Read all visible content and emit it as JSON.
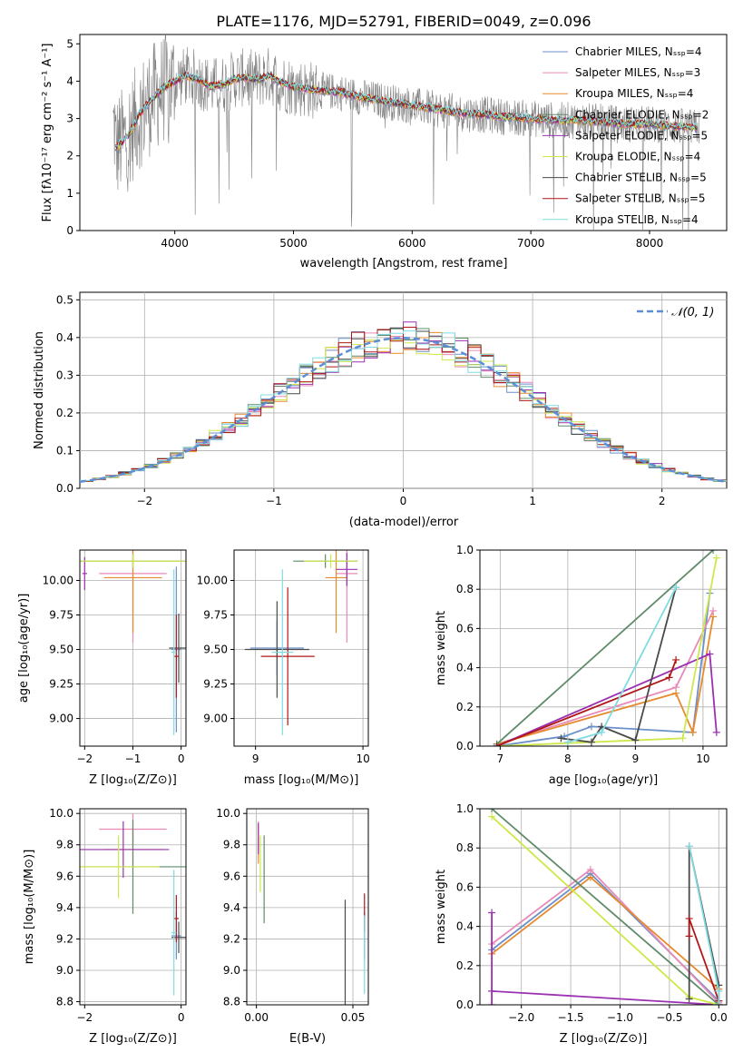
{
  "colors": {
    "chabrier_miles": "#6b8fc9",
    "salpeter_miles": "#e88ab8",
    "kroupa_miles": "#e68a2e",
    "chabrier_elodie": "#5e8c6a",
    "salpeter_elodie": "#9b30b0",
    "kroupa_elodie": "#cde84a",
    "chabrier_stelib": "#4a4a4a",
    "salpeter_stelib": "#b01818",
    "kroupa_stelib": "#7fdbe0",
    "data_gray": "#808080",
    "normal": "#5b8ed6"
  },
  "chart_data": [
    {
      "id": "spectrum",
      "type": "line",
      "title": "PLATE=1176, MJD=52791, FIBERID=0049, z=0.096",
      "xlabel": "wavelength [Angstrom, rest frame]",
      "ylabel": "Flux [fλ10⁻¹⁷ erg cm⁻² s⁻¹ A⁻¹]",
      "xlim": [
        3200,
        8650
      ],
      "ylim": [
        0,
        5.25
      ],
      "xticks": [
        "4000",
        "5000",
        "6000",
        "7000",
        "8000"
      ],
      "yticks": [
        "0",
        "1",
        "2",
        "3",
        "4",
        "5"
      ],
      "legend_position": "top-right",
      "legend": [
        {
          "label": "Chabrier MILES, Nₛₛₚ=4",
          "key": "chabrier_miles"
        },
        {
          "label": "Salpeter MILES, Nₛₛₚ=3",
          "key": "salpeter_miles"
        },
        {
          "label": "Kroupa MILES, Nₛₛₚ=4",
          "key": "kroupa_miles"
        },
        {
          "label": "Chabrier ELODIE, Nₛₛₚ=2",
          "key": "chabrier_elodie"
        },
        {
          "label": "Salpeter ELODIE, Nₛₛₚ=5",
          "key": "salpeter_elodie"
        },
        {
          "label": "Kroupa ELODIE, Nₛₛₚ=4",
          "key": "kroupa_elodie"
        },
        {
          "label": "Chabrier STELIB, Nₛₛₚ=5",
          "key": "chabrier_stelib"
        },
        {
          "label": "Salpeter STELIB, Nₛₛₚ=5",
          "key": "salpeter_stelib"
        },
        {
          "label": "Kroupa STELIB, Nₛₛₚ=4",
          "key": "kroupa_stelib"
        }
      ],
      "continuum": [
        [
          3500,
          2.2
        ],
        [
          3600,
          2.5
        ],
        [
          3700,
          3.1
        ],
        [
          3800,
          3.5
        ],
        [
          3900,
          3.8
        ],
        [
          4000,
          4.0
        ],
        [
          4100,
          4.15
        ],
        [
          4200,
          4.05
        ],
        [
          4300,
          3.85
        ],
        [
          4400,
          3.9
        ],
        [
          4500,
          4.05
        ],
        [
          4600,
          4.1
        ],
        [
          4700,
          4.05
        ],
        [
          4800,
          4.15
        ],
        [
          4900,
          3.95
        ],
        [
          5000,
          3.85
        ],
        [
          5200,
          3.75
        ],
        [
          5400,
          3.7
        ],
        [
          5600,
          3.55
        ],
        [
          5800,
          3.45
        ],
        [
          6000,
          3.35
        ],
        [
          6200,
          3.25
        ],
        [
          6400,
          3.15
        ],
        [
          6600,
          3.1
        ],
        [
          6800,
          3.05
        ],
        [
          7000,
          3.0
        ],
        [
          7200,
          2.95
        ],
        [
          7400,
          2.95
        ],
        [
          7600,
          2.9
        ],
        [
          7800,
          2.85
        ],
        [
          8000,
          2.85
        ],
        [
          8200,
          2.8
        ],
        [
          8400,
          2.75
        ]
      ]
    },
    {
      "id": "residuals",
      "type": "line",
      "xlabel": "(data-model)/error",
      "ylabel": "Normed distribution",
      "xlim": [
        -2.5,
        2.5
      ],
      "ylim": [
        0,
        0.52
      ],
      "xticks": [
        "−2",
        "−1",
        "0",
        "1",
        "2"
      ],
      "yticks": [
        "0.0",
        "0.1",
        "0.2",
        "0.3",
        "0.4",
        "0.5"
      ],
      "legend_position": "top-right",
      "legend": [
        {
          "label": "𝒩(0, 1)",
          "key": "normal"
        }
      ],
      "series": [
        {
          "mean": 0,
          "sigma": 1
        }
      ]
    },
    {
      "id": "age_vs_Z",
      "type": "scatter",
      "xlabel": "Z [log₁₀(Z/Z⊙)]",
      "ylabel": "age  [log₁₀(age/yr)]",
      "xlim": [
        -2.1,
        0.1
      ],
      "ylim": [
        8.8,
        10.22
      ],
      "xticks": [
        "−2",
        "−1",
        "0"
      ],
      "yticks": [
        "9.00",
        "9.25",
        "9.50",
        "9.75",
        "10.00"
      ],
      "points": [
        {
          "key": "chabrier_miles",
          "x": -0.1,
          "y": 9.5,
          "xerr": 0.1,
          "yerr": 0.6
        },
        {
          "key": "salpeter_miles",
          "x": -1.0,
          "y": 10.05,
          "xerr": 0.7,
          "yerr": 0.5
        },
        {
          "key": "kroupa_miles",
          "x": -1.0,
          "y": 10.02,
          "xerr": 0.6,
          "yerr": 0.4
        },
        {
          "key": "chabrier_elodie",
          "x": -1.0,
          "y": 10.14,
          "xerr": 1.1,
          "yerr": 0.05
        },
        {
          "key": "salpeter_elodie",
          "x": -2.0,
          "y": 10.05,
          "xerr": 0.05,
          "yerr": 0.12
        },
        {
          "key": "kroupa_elodie",
          "x": -1.0,
          "y": 10.14,
          "xerr": 1.1,
          "yerr": 0.05
        },
        {
          "key": "chabrier_stelib",
          "x": -0.05,
          "y": 9.51,
          "xerr": 0.2,
          "yerr": 0.25
        },
        {
          "key": "salpeter_stelib",
          "x": -0.1,
          "y": 9.45,
          "xerr": 0.05,
          "yerr": 0.3
        },
        {
          "key": "kroupa_stelib",
          "x": -0.15,
          "y": 9.48,
          "xerr": 0.05,
          "yerr": 0.6
        }
      ]
    },
    {
      "id": "age_vs_mass",
      "type": "scatter",
      "xlabel": "mass [log₁₀(M/M⊙)]",
      "ylabel": "",
      "xlim": [
        8.8,
        10.05
      ],
      "ylim": [
        8.8,
        10.22
      ],
      "xticks": [
        "9",
        "10"
      ],
      "yticks": [
        "9.00",
        "9.25",
        "9.50",
        "9.75",
        "10.00"
      ],
      "points": [
        {
          "key": "chabrier_miles",
          "x": 9.2,
          "y": 9.51,
          "xerr": 0.25,
          "yerr": 0.2
        },
        {
          "key": "salpeter_miles",
          "x": 9.85,
          "y": 10.05,
          "xerr": 0.1,
          "yerr": 0.5
        },
        {
          "key": "kroupa_miles",
          "x": 9.75,
          "y": 10.02,
          "xerr": 0.1,
          "yerr": 0.4
        },
        {
          "key": "chabrier_elodie",
          "x": 9.65,
          "y": 10.14,
          "xerr": 0.3,
          "yerr": 0.05
        },
        {
          "key": "salpeter_elodie",
          "x": 9.85,
          "y": 10.08,
          "xerr": 0.1,
          "yerr": 0.12
        },
        {
          "key": "kroupa_elodie",
          "x": 9.7,
          "y": 10.14,
          "xerr": 0.25,
          "yerr": 0.05
        },
        {
          "key": "chabrier_stelib",
          "x": 9.2,
          "y": 9.5,
          "xerr": 0.3,
          "yerr": 0.35
        },
        {
          "key": "salpeter_stelib",
          "x": 9.3,
          "y": 9.45,
          "xerr": 0.25,
          "yerr": 0.5
        },
        {
          "key": "kroupa_stelib",
          "x": 9.25,
          "y": 9.48,
          "xerr": 0.1,
          "yerr": 0.6
        }
      ]
    },
    {
      "id": "massweight_vs_age",
      "type": "line",
      "xlabel": "age  [log₁₀(age/yr)]",
      "ylabel": "mass weight",
      "xlim": [
        6.7,
        10.35
      ],
      "ylim": [
        0,
        1.0
      ],
      "xticks": [
        "7",
        "8",
        "9",
        "10"
      ],
      "yticks": [
        "0.0",
        "0.2",
        "0.4",
        "0.6",
        "0.8",
        "1.0"
      ],
      "series": [
        {
          "key": "chabrier_miles",
          "x": [
            6.95,
            7.95,
            8.35,
            9.85,
            10.1
          ],
          "y": [
            0.0,
            0.05,
            0.1,
            0.07,
            0.78
          ]
        },
        {
          "key": "salpeter_miles",
          "x": [
            6.95,
            9.6,
            10.15
          ],
          "y": [
            0.01,
            0.3,
            0.69
          ]
        },
        {
          "key": "kroupa_miles",
          "x": [
            6.95,
            9.6,
            9.85,
            10.15
          ],
          "y": [
            0.01,
            0.27,
            0.07,
            0.66
          ]
        },
        {
          "key": "chabrier_elodie",
          "x": [
            6.95,
            10.15
          ],
          "y": [
            0.01,
            1.0
          ]
        },
        {
          "key": "salpeter_elodie",
          "x": [
            6.95,
            10.1,
            10.2
          ],
          "y": [
            0.0,
            0.47,
            0.07
          ]
        },
        {
          "key": "kroupa_elodie",
          "x": [
            6.95,
            9.7,
            10.2
          ],
          "y": [
            0.0,
            0.04,
            0.96
          ]
        },
        {
          "key": "chabrier_stelib",
          "x": [
            7.9,
            8.35,
            8.5,
            9.0,
            9.6
          ],
          "y": [
            0.04,
            0.02,
            0.1,
            0.03,
            0.81
          ]
        },
        {
          "key": "salpeter_stelib",
          "x": [
            6.95,
            9.5,
            9.6
          ],
          "y": [
            0.0,
            0.35,
            0.44
          ]
        },
        {
          "key": "kroupa_stelib",
          "x": [
            8.0,
            8.5,
            9.6
          ],
          "y": [
            0.02,
            0.07,
            0.81
          ]
        }
      ]
    },
    {
      "id": "mass_vs_Z",
      "type": "scatter",
      "xlabel": "Z [log₁₀(Z/Z⊙)]",
      "ylabel": "mass [log₁₀(M/M⊙)]",
      "xlim": [
        -2.1,
        0.1
      ],
      "ylim": [
        8.78,
        10.03
      ],
      "xticks": [
        "−2",
        "0"
      ],
      "yticks": [
        "8.8",
        "9.0",
        "9.2",
        "9.4",
        "9.6",
        "9.8",
        "10.0"
      ],
      "points": [
        {
          "key": "chabrier_miles",
          "x": -0.1,
          "y": 9.22,
          "xerr": 0.1,
          "yerr": 0.15
        },
        {
          "key": "salpeter_miles",
          "x": -1.0,
          "y": 9.9,
          "xerr": 0.7,
          "yerr": 0.1
        },
        {
          "key": "kroupa_miles",
          "x": -1.0,
          "y": 9.77,
          "xerr": 0.6,
          "yerr": 0.12
        },
        {
          "key": "chabrier_elodie",
          "x": -1.0,
          "y": 9.66,
          "xerr": 1.1,
          "yerr": 0.3
        },
        {
          "key": "salpeter_elodie",
          "x": -1.2,
          "y": 9.77,
          "xerr": 0.95,
          "yerr": 0.18
        },
        {
          "key": "kroupa_elodie",
          "x": -1.3,
          "y": 9.66,
          "xerr": 0.85,
          "yerr": 0.2
        },
        {
          "key": "chabrier_stelib",
          "x": -0.05,
          "y": 9.21,
          "xerr": 0.15,
          "yerr": 0.1
        },
        {
          "key": "salpeter_stelib",
          "x": -0.1,
          "y": 9.33,
          "xerr": 0.05,
          "yerr": 0.15
        },
        {
          "key": "kroupa_stelib",
          "x": -0.15,
          "y": 9.24,
          "xerr": 0.05,
          "yerr": 0.4
        }
      ]
    },
    {
      "id": "mass_vs_ebv",
      "type": "scatter",
      "xlabel": "E(B-V)",
      "ylabel": "",
      "xlim": [
        -0.005,
        0.058
      ],
      "ylim": [
        8.78,
        10.03
      ],
      "xticks": [
        "0.00",
        "0.05"
      ],
      "yticks": [
        "8.8",
        "9.0",
        "9.2",
        "9.4",
        "9.6",
        "9.8",
        "10.0"
      ],
      "points": [
        {
          "key": "chabrier_miles",
          "x": 0.056,
          "y": 9.22,
          "yerr": 0.15
        },
        {
          "key": "salpeter_miles",
          "x": 0.001,
          "y": 9.85,
          "yerr": 0.1
        },
        {
          "key": "kroupa_miles",
          "x": 0.001,
          "y": 9.8,
          "yerr": 0.12
        },
        {
          "key": "chabrier_elodie",
          "x": 0.004,
          "y": 9.58,
          "yerr": 0.28
        },
        {
          "key": "salpeter_elodie",
          "x": 0.001,
          "y": 9.84,
          "yerr": 0.1
        },
        {
          "key": "kroupa_elodie",
          "x": 0.002,
          "y": 9.68,
          "yerr": 0.18
        },
        {
          "key": "chabrier_stelib",
          "x": 0.046,
          "y": 9.1,
          "yerr": 0.35
        },
        {
          "key": "salpeter_stelib",
          "x": 0.056,
          "y": 9.37,
          "yerr": 0.12
        },
        {
          "key": "kroupa_stelib",
          "x": 0.056,
          "y": 9.1,
          "yerr": 0.25
        }
      ]
    },
    {
      "id": "massweight_vs_Z",
      "type": "line",
      "xlabel": "Z [log₁₀(Z/Z⊙)]",
      "ylabel": "mass weight",
      "xlim": [
        -2.42,
        0.08
      ],
      "ylim": [
        0,
        1.0
      ],
      "xticks": [
        "−2.0",
        "−1.5",
        "−1.0",
        "−0.5",
        "0.0"
      ],
      "yticks": [
        "0.0",
        "0.2",
        "0.4",
        "0.6",
        "0.8",
        "1.0"
      ],
      "series": [
        {
          "key": "chabrier_miles",
          "x": [
            -2.3,
            -1.3,
            0.0
          ],
          "y": [
            0.28,
            0.67,
            0.02
          ]
        },
        {
          "key": "salpeter_miles",
          "x": [
            -2.3,
            -1.3,
            0.0
          ],
          "y": [
            0.31,
            0.69,
            0.01
          ]
        },
        {
          "key": "kroupa_miles",
          "x": [
            -2.3,
            -1.3,
            0.0
          ],
          "y": [
            0.26,
            0.65,
            0.08
          ]
        },
        {
          "key": "chabrier_elodie",
          "x": [
            -2.3,
            0.0
          ],
          "y": [
            1.0,
            0.0
          ]
        },
        {
          "key": "salpeter_elodie",
          "x": [
            -2.3,
            -2.3,
            -2.3,
            0.0
          ],
          "y": [
            0.47,
            0.0,
            0.07,
            0.0
          ]
        },
        {
          "key": "kroupa_elodie",
          "x": [
            -2.3,
            -0.3,
            0.0
          ],
          "y": [
            0.96,
            0.04,
            0.0
          ]
        },
        {
          "key": "chabrier_stelib",
          "x": [
            -0.3,
            -0.3,
            0.0,
            0.0
          ],
          "y": [
            0.03,
            0.81,
            0.1,
            0.0
          ]
        },
        {
          "key": "salpeter_stelib",
          "x": [
            -0.3,
            -0.3,
            0.0
          ],
          "y": [
            0.35,
            0.44,
            0.02
          ]
        },
        {
          "key": "kroupa_stelib",
          "x": [
            -0.3,
            0.0,
            0.0
          ],
          "y": [
            0.81,
            0.07,
            0.0
          ]
        }
      ]
    }
  ]
}
